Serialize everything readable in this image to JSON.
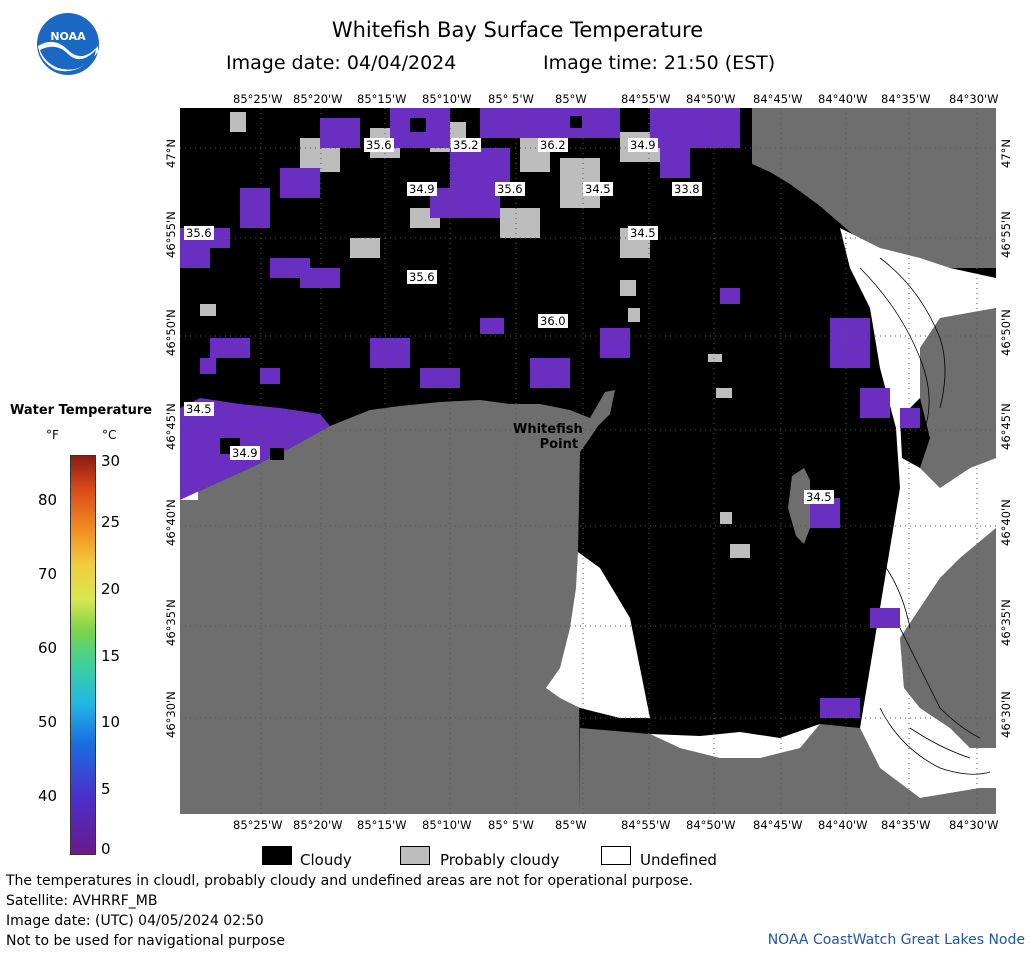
{
  "title": "Whitefish Bay Surface Temperature",
  "image_date_label": "Image date: 04/04/2024",
  "image_time_label": "Image time: 21:50 (EST)",
  "logo_text": "NOAA",
  "x_ticks": [
    "85°25'W",
    "85°20'W",
    "85°15'W",
    "85°10'W",
    "85° 5'W",
    "85°W",
    "84°55'W",
    "84°50'W",
    "84°45'W",
    "84°40'W",
    "84°35'W",
    "84°30'W"
  ],
  "y_ticks": [
    "47°N",
    "46°55'N",
    "46°50'N",
    "46°45'N",
    "46°40'N",
    "46°35'N",
    "46°30'N"
  ],
  "place_label": [
    "Whitefish",
    "Point"
  ],
  "temp_labels": [
    "35.6",
    "35.2",
    "36.2",
    "34.9",
    "34.9",
    "35.6",
    "34.5",
    "33.8",
    "35.6",
    "34.5",
    "35.6",
    "36.0",
    "34.5",
    "34.9",
    "34.5"
  ],
  "colorbar": {
    "title": "Water Temperature",
    "unit_f": "°F",
    "unit_c": "°C",
    "f_ticks": [
      "80",
      "70",
      "60",
      "50",
      "40"
    ],
    "c_ticks": [
      "30",
      "25",
      "20",
      "15",
      "10",
      "5",
      "0"
    ]
  },
  "legend": {
    "cloudy": "Cloudy",
    "probably_cloudy": "Probably cloudy",
    "undefined": "Undefined"
  },
  "footer": {
    "line1": "The temperatures in cloudl, probably cloudy and undefined areas are not for operational purpose.",
    "line2": "Satellite: AVHRRF_MB",
    "line3": "Image date: (UTC) 04/05/2024  02:50",
    "line4": "Not to be used for navigational purpose",
    "credit": "NOAA CoastWatch Great Lakes Node"
  },
  "colors": {
    "land": "#6e6e6e",
    "cloudy": "#000000",
    "probably_cloudy": "#bdbdbd",
    "undefined": "#ffffff",
    "water_cold": "#6a2fc0"
  }
}
